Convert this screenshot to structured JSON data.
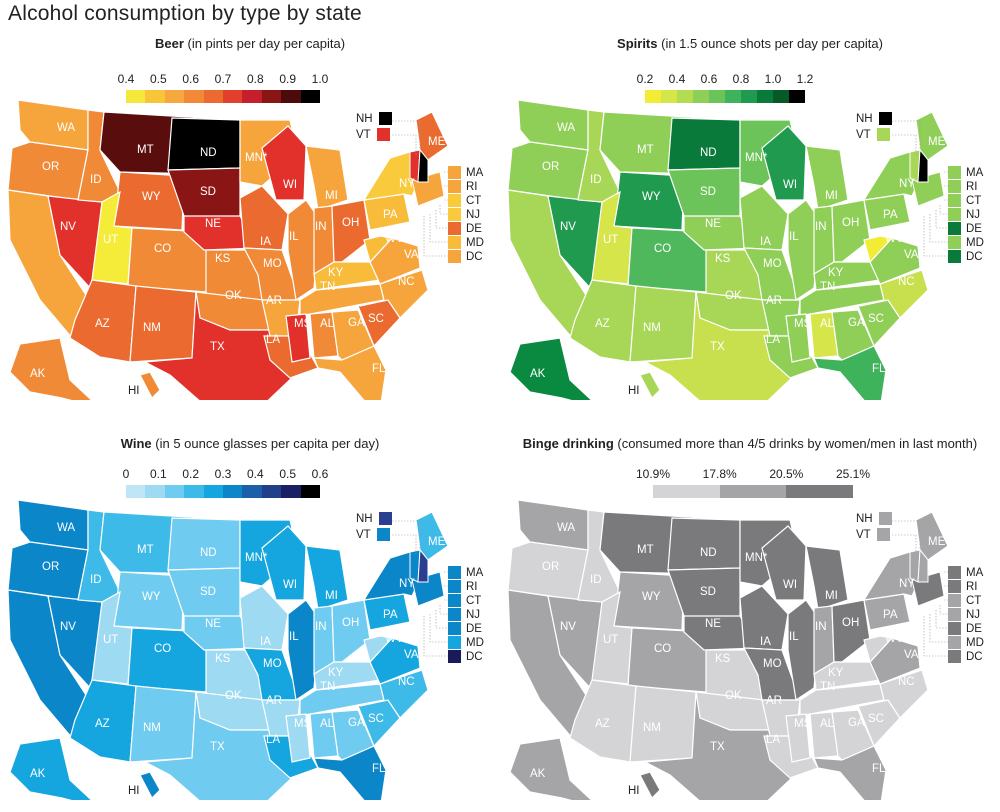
{
  "title": "Alcohol consumption by type by state",
  "panels": [
    {
      "id": "beer",
      "title_bold": "Beer",
      "title_rest": " (in pints per day per capita)",
      "ticks": [
        "0.4",
        "0.5",
        "0.6",
        "0.7",
        "0.8",
        "0.9",
        "1.0"
      ],
      "scale_colors": [
        "#f5e83a",
        "#f8c43a",
        "#f6a73d",
        "#f08a36",
        "#ea6a2f",
        "#e2402c",
        "#c41f2a",
        "#8a1515",
        "#4d0a0a",
        "#000000"
      ],
      "nhvt": [
        {
          "label": "NH",
          "color": "#000000"
        },
        {
          "label": "VT",
          "color": "#e2302b"
        }
      ],
      "small": [
        {
          "label": "MA",
          "color": "#f6a53d"
        },
        {
          "label": "RI",
          "color": "#f6a53d"
        },
        {
          "label": "CT",
          "color": "#f9cb3c"
        },
        {
          "label": "NJ",
          "color": "#f9cb3c"
        },
        {
          "label": "DE",
          "color": "#ea6a2f"
        },
        {
          "label": "MD",
          "color": "#f9bb3a"
        },
        {
          "label": "DC",
          "color": "#f6a53d"
        }
      ],
      "states": {
        "WA": "#f6a53d",
        "OR": "#f08a36",
        "CA": "#f6a53d",
        "NV": "#e2302b",
        "ID": "#f08a36",
        "MT": "#5a0d0d",
        "WY": "#ea6a2f",
        "UT": "#f5ec3a",
        "CO": "#f08a36",
        "AZ": "#ea6a2f",
        "NM": "#ea6a2f",
        "ND": "#000000",
        "SD": "#8a1515",
        "NE": "#e2302b",
        "KS": "#f08a36",
        "OK": "#f08a36",
        "TX": "#e2302b",
        "MN": "#f6a53d",
        "IA": "#ea6a2f",
        "MO": "#f08a36",
        "AR": "#f6a53d",
        "LA": "#ea6a2f",
        "WI": "#e2302b",
        "IL": "#f08a36",
        "MI": "#f6a53d",
        "IN": "#f08a36",
        "OH": "#ea6a2f",
        "KY": "#f9bb3a",
        "TN": "#f6a53d",
        "MS": "#e2302b",
        "AL": "#f08a36",
        "GA": "#f6a53d",
        "FL": "#f6a53d",
        "SC": "#ea6a2f",
        "NC": "#f6a53d",
        "VA": "#f6a53d",
        "WV": "#f9bb3a",
        "PA": "#f9bb3a",
        "NY": "#f9cb3c",
        "ME": "#ea6a2f",
        "AK": "#f08a36",
        "HI": "#f08a36"
      }
    },
    {
      "id": "spirits",
      "title_bold": "Spirits",
      "title_rest": " (in 1.5 ounce shots per day per capita)",
      "ticks": [
        "0.2",
        "0.4",
        "0.6",
        "0.8",
        "1.0",
        "1.2"
      ],
      "scale_colors": [
        "#f3ec35",
        "#d6e64a",
        "#b3dc52",
        "#8fcf57",
        "#6cc35a",
        "#3fb25c",
        "#1f9a4f",
        "#0a7a3a",
        "#055a28",
        "#000000"
      ],
      "nhvt": [
        {
          "label": "NH",
          "color": "#000000"
        },
        {
          "label": "VT",
          "color": "#a8d656"
        }
      ],
      "small": [
        {
          "label": "MA",
          "color": "#8fcf57"
        },
        {
          "label": "RI",
          "color": "#8fcf57"
        },
        {
          "label": "CT",
          "color": "#8fcf57"
        },
        {
          "label": "NJ",
          "color": "#8fcf57"
        },
        {
          "label": "DE",
          "color": "#0a7a3a"
        },
        {
          "label": "MD",
          "color": "#8fcf57"
        },
        {
          "label": "DC",
          "color": "#0a7a3a"
        }
      ],
      "states": {
        "WA": "#8fcf57",
        "OR": "#8fcf57",
        "CA": "#a8d656",
        "NV": "#1f9a4f",
        "ID": "#a8d656",
        "MT": "#8fcf57",
        "WY": "#1f9a4f",
        "UT": "#d6e64a",
        "CO": "#4fb75c",
        "AZ": "#a8d656",
        "NM": "#a8d656",
        "ND": "#0a7a3a",
        "SD": "#6cc35a",
        "NE": "#8fcf57",
        "KS": "#a8d656",
        "OK": "#a8d656",
        "TX": "#c8e04d",
        "MN": "#6cc35a",
        "IA": "#8fcf57",
        "MO": "#8fcf57",
        "AR": "#8fcf57",
        "LA": "#8fcf57",
        "WI": "#1f9a4f",
        "IL": "#8fcf57",
        "MI": "#8fcf57",
        "IN": "#8fcf57",
        "OH": "#8fcf57",
        "KY": "#8fcf57",
        "TN": "#8fcf57",
        "MS": "#8fcf57",
        "AL": "#d6e64a",
        "GA": "#8fcf57",
        "FL": "#3fb25c",
        "SC": "#8fcf57",
        "NC": "#c8e04d",
        "VA": "#8fcf57",
        "WV": "#f3ec35",
        "PA": "#8fcf57",
        "NY": "#8fcf57",
        "ME": "#8fcf57",
        "AK": "#0a8a40",
        "HI": "#a8d656"
      }
    },
    {
      "id": "wine",
      "title_bold": "Wine",
      "title_rest": " (in 5 ounce glasses per capita per day)",
      "ticks": [
        "0",
        "0.1",
        "0.2",
        "0.3",
        "0.4",
        "0.5",
        "0.6"
      ],
      "scale_colors": [
        "#bfe6f6",
        "#9fdaf3",
        "#6fcbef",
        "#3ebae9",
        "#15a6e0",
        "#0a86c9",
        "#1a5fa8",
        "#223f8a",
        "#1a2064",
        "#000000"
      ],
      "nhvt": [
        {
          "label": "NH",
          "color": "#2a3f8f"
        },
        {
          "label": "VT",
          "color": "#0a86c9"
        }
      ],
      "small": [
        {
          "label": "MA",
          "color": "#0a86c9"
        },
        {
          "label": "RI",
          "color": "#0a86c9"
        },
        {
          "label": "CT",
          "color": "#0a86c9"
        },
        {
          "label": "NJ",
          "color": "#0a86c9"
        },
        {
          "label": "DE",
          "color": "#0a86c9"
        },
        {
          "label": "MD",
          "color": "#15a6e0"
        },
        {
          "label": "DC",
          "color": "#1a1a5a"
        }
      ],
      "states": {
        "WA": "#0a86c9",
        "OR": "#0a86c9",
        "CA": "#0a86c9",
        "NV": "#0a86c9",
        "ID": "#3ebae9",
        "MT": "#3ebae9",
        "WY": "#6fcbef",
        "UT": "#9fdaf3",
        "CO": "#15a6e0",
        "AZ": "#15a6e0",
        "NM": "#6fcbef",
        "ND": "#6fcbef",
        "SD": "#6fcbef",
        "NE": "#6fcbef",
        "KS": "#9fdaf3",
        "OK": "#9fdaf3",
        "TX": "#6fcbef",
        "MN": "#15a6e0",
        "IA": "#9fdaf3",
        "MO": "#15a6e0",
        "AR": "#9fdaf3",
        "LA": "#15a6e0",
        "WI": "#15a6e0",
        "IL": "#0a86c9",
        "MI": "#15a6e0",
        "IN": "#6fcbef",
        "OH": "#6fcbef",
        "KY": "#9fdaf3",
        "TN": "#6fcbef",
        "MS": "#9fdaf3",
        "AL": "#6fcbef",
        "GA": "#6fcbef",
        "FL": "#0a86c9",
        "SC": "#3ebae9",
        "NC": "#3ebae9",
        "VA": "#15a6e0",
        "WV": "#9fdaf3",
        "PA": "#15a6e0",
        "NY": "#0a86c9",
        "ME": "#3ebae9",
        "AK": "#15a6e0",
        "HI": "#0a86c9"
      }
    },
    {
      "id": "binge",
      "title_bold": "Binge drinking",
      "title_rest": " (consumed more than 4/5 drinks by women/men in last month)",
      "ticks": [
        "10.9%",
        "17.8%",
        "20.5%",
        "25.1%"
      ],
      "scale_colors": [
        "#d4d4d6",
        "#a5a5a8",
        "#7a7a7d"
      ],
      "nhvt": [
        {
          "label": "NH",
          "color": "#a5a5a8"
        },
        {
          "label": "VT",
          "color": "#a5a5a8"
        }
      ],
      "small": [
        {
          "label": "MA",
          "color": "#7a7a7d"
        },
        {
          "label": "RI",
          "color": "#7a7a7d"
        },
        {
          "label": "CT",
          "color": "#a5a5a8"
        },
        {
          "label": "NJ",
          "color": "#a5a5a8"
        },
        {
          "label": "DE",
          "color": "#7a7a7d"
        },
        {
          "label": "MD",
          "color": "#a5a5a8"
        },
        {
          "label": "DC",
          "color": "#7a7a7d"
        }
      ],
      "states": {
        "WA": "#a5a5a8",
        "OR": "#d4d4d6",
        "CA": "#a5a5a8",
        "NV": "#a5a5a8",
        "ID": "#d4d4d6",
        "MT": "#7a7a7d",
        "WY": "#a5a5a8",
        "UT": "#d4d4d6",
        "CO": "#a5a5a8",
        "AZ": "#d4d4d6",
        "NM": "#d4d4d6",
        "ND": "#7a7a7d",
        "SD": "#7a7a7d",
        "NE": "#7a7a7d",
        "KS": "#d4d4d6",
        "OK": "#d4d4d6",
        "TX": "#a5a5a8",
        "MN": "#7a7a7d",
        "IA": "#7a7a7d",
        "MO": "#7a7a7d",
        "AR": "#d4d4d6",
        "LA": "#d4d4d6",
        "WI": "#7a7a7d",
        "IL": "#7a7a7d",
        "MI": "#7a7a7d",
        "IN": "#a5a5a8",
        "OH": "#7a7a7d",
        "KY": "#d4d4d6",
        "TN": "#d4d4d6",
        "MS": "#d4d4d6",
        "AL": "#d4d4d6",
        "GA": "#d4d4d6",
        "FL": "#a5a5a8",
        "SC": "#d4d4d6",
        "NC": "#d4d4d6",
        "VA": "#a5a5a8",
        "WV": "#d4d4d6",
        "PA": "#a5a5a8",
        "NY": "#a5a5a8",
        "ME": "#a5a5a8",
        "AK": "#a5a5a8",
        "HI": "#7a7a7d"
      }
    }
  ],
  "state_labels": {
    "WA": "WA",
    "OR": "OR",
    "CA": "",
    "NV": "NV",
    "ID": "ID",
    "MT": "MT",
    "WY": "WY",
    "UT": "UT",
    "CO": "CO",
    "AZ": "AZ",
    "NM": "NM",
    "ND": "ND",
    "SD": "SD",
    "NE": "NE",
    "KS": "KS",
    "OK": "OK",
    "TX": "TX",
    "MN": "MN*",
    "IA": "IA",
    "MO": "MO",
    "AR": "AR",
    "LA": "LA",
    "WI": "WI",
    "IL": "IL",
    "MI": "MI",
    "IN": "IN",
    "OH": "OH",
    "KY": "KY",
    "TN": "TN",
    "MS": "MS",
    "AL": "AL",
    "GA": "GA",
    "FL": "FL",
    "SC": "SC",
    "NC": "NC",
    "VA": "VA",
    "WV": "WV",
    "PA": "PA",
    "NY": "NY",
    "ME": "ME",
    "AK": "AK",
    "HI": "HI"
  }
}
